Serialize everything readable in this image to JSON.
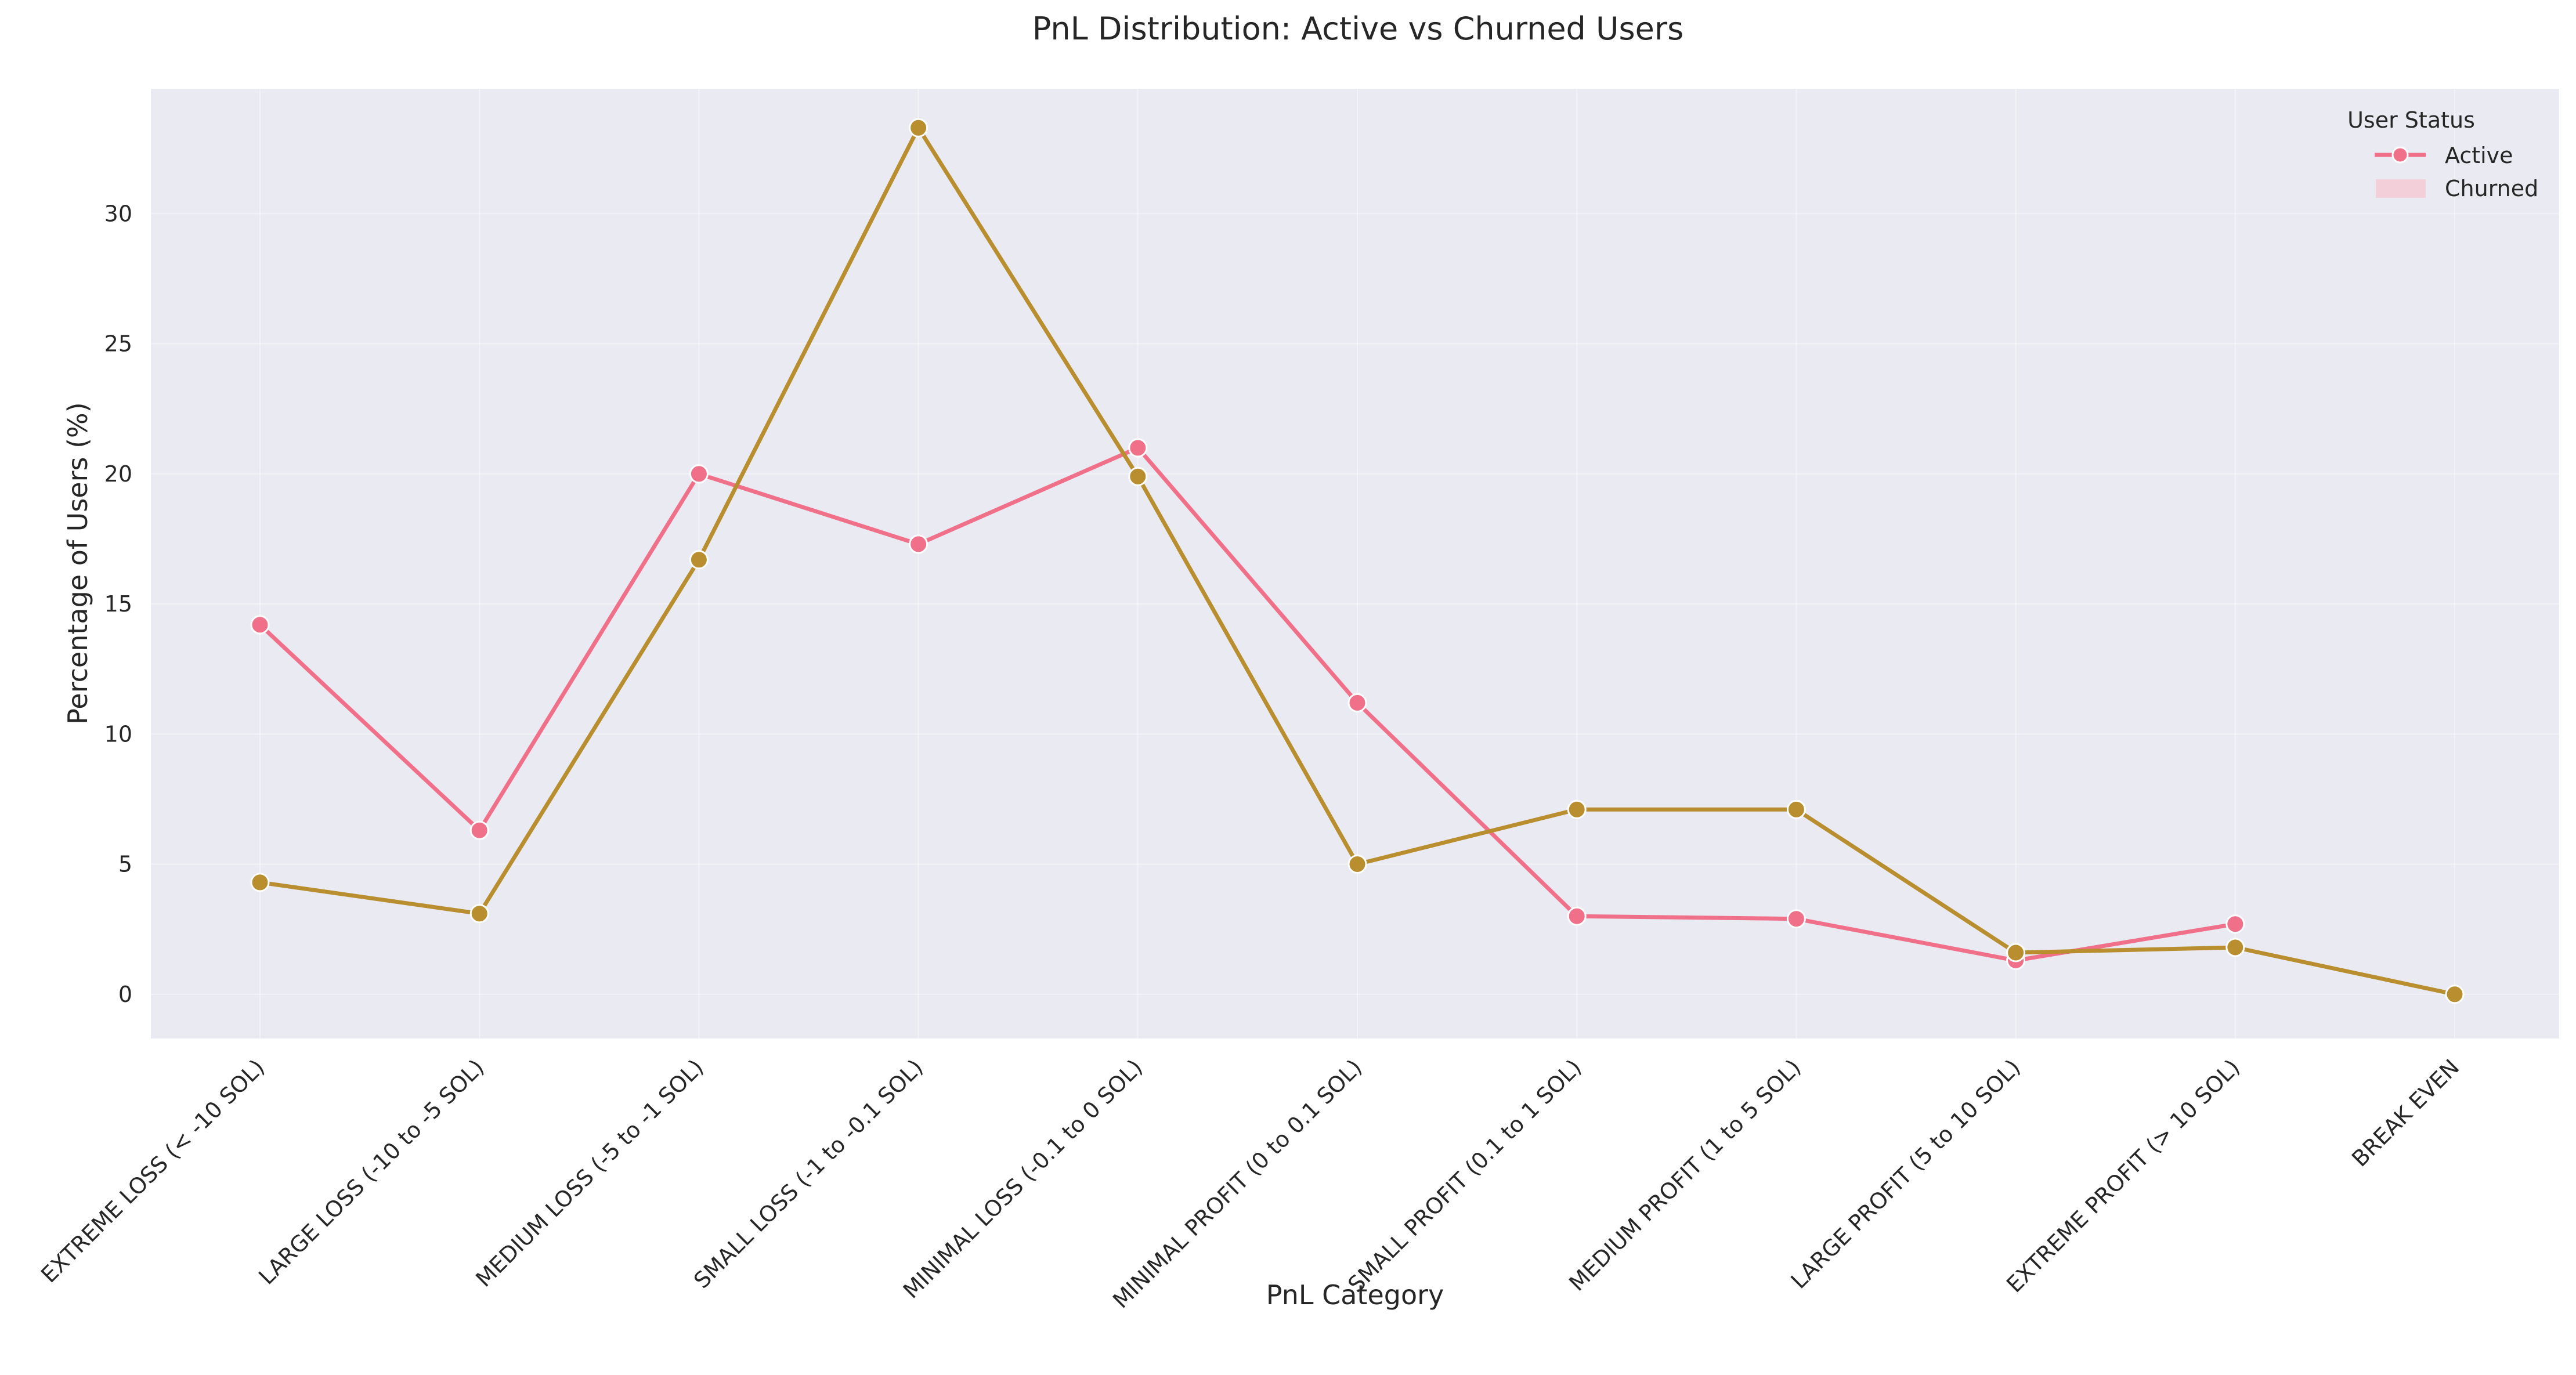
{
  "chart_data": {
    "type": "line",
    "title": "PnL Distribution: Active vs Churned Users",
    "xlabel": "PnL Category",
    "ylabel": "Percentage of Users (%)",
    "ylim": [
      -1.7,
      34.8
    ],
    "yticks": [
      "0",
      "5",
      "10",
      "15",
      "20",
      "25",
      "30"
    ],
    "categories": [
      "EXTREME LOSS (< -10 SOL)",
      "LARGE LOSS (-10 to -5 SOL)",
      "MEDIUM LOSS (-5 to -1 SOL)",
      "SMALL LOSS (-1 to -0.1 SOL)",
      "MINIMAL LOSS (-0.1 to 0 SOL)",
      "MINIMAL PROFIT (0 to 0.1 SOL)",
      "SMALL PROFIT (0.1 to 1 SOL)",
      "MEDIUM PROFIT (1 to 5 SOL)",
      "LARGE PROFIT (5 to 10 SOL)",
      "EXTREME PROFIT (> 10 SOL)",
      "BREAK EVEN"
    ],
    "series": [
      {
        "name": "Active",
        "color": "#f0708a",
        "values": [
          14.2,
          6.3,
          20.0,
          17.3,
          21.0,
          11.2,
          3.0,
          2.9,
          1.3,
          2.7,
          null
        ]
      },
      {
        "name": "Churned",
        "color": "#b88e2e",
        "values": [
          4.3,
          3.1,
          16.7,
          33.3,
          19.9,
          5.0,
          7.1,
          7.1,
          1.6,
          1.8,
          0.0
        ]
      }
    ],
    "grid": true,
    "legend": {
      "title": "User Status",
      "placement": "top-right",
      "entries": [
        {
          "label": "Active",
          "swatch": "line-marker",
          "color": "#f0708a"
        },
        {
          "label": "Churned",
          "swatch": "patch",
          "color": "#f2cfd9"
        }
      ]
    },
    "colors": {
      "plot_background": "#eaeaf2",
      "page_background": "#ffffff",
      "text": "#262626"
    }
  }
}
